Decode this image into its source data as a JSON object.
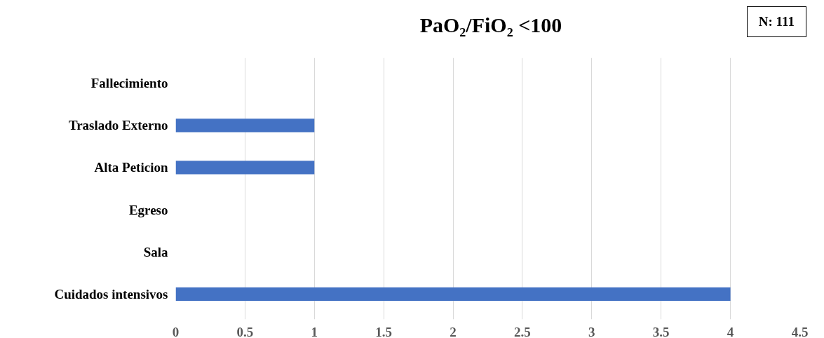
{
  "chart_data": {
    "type": "bar",
    "orientation": "horizontal",
    "title": "PaO₂/FiO₂ <100",
    "annotations": [
      "N: 111"
    ],
    "categories": [
      "Fallecimiento",
      "Traslado Externo",
      "Alta Peticion",
      "Egreso",
      "Sala",
      "Cuidados intensivos"
    ],
    "values": [
      0,
      1,
      1,
      0,
      0,
      4
    ],
    "color": "#4472c4",
    "xlim": [
      0,
      4.5
    ],
    "xticks": [
      0,
      0.5,
      1,
      1.5,
      2,
      2.5,
      3,
      3.5,
      4,
      4.5
    ],
    "grid": "x"
  }
}
